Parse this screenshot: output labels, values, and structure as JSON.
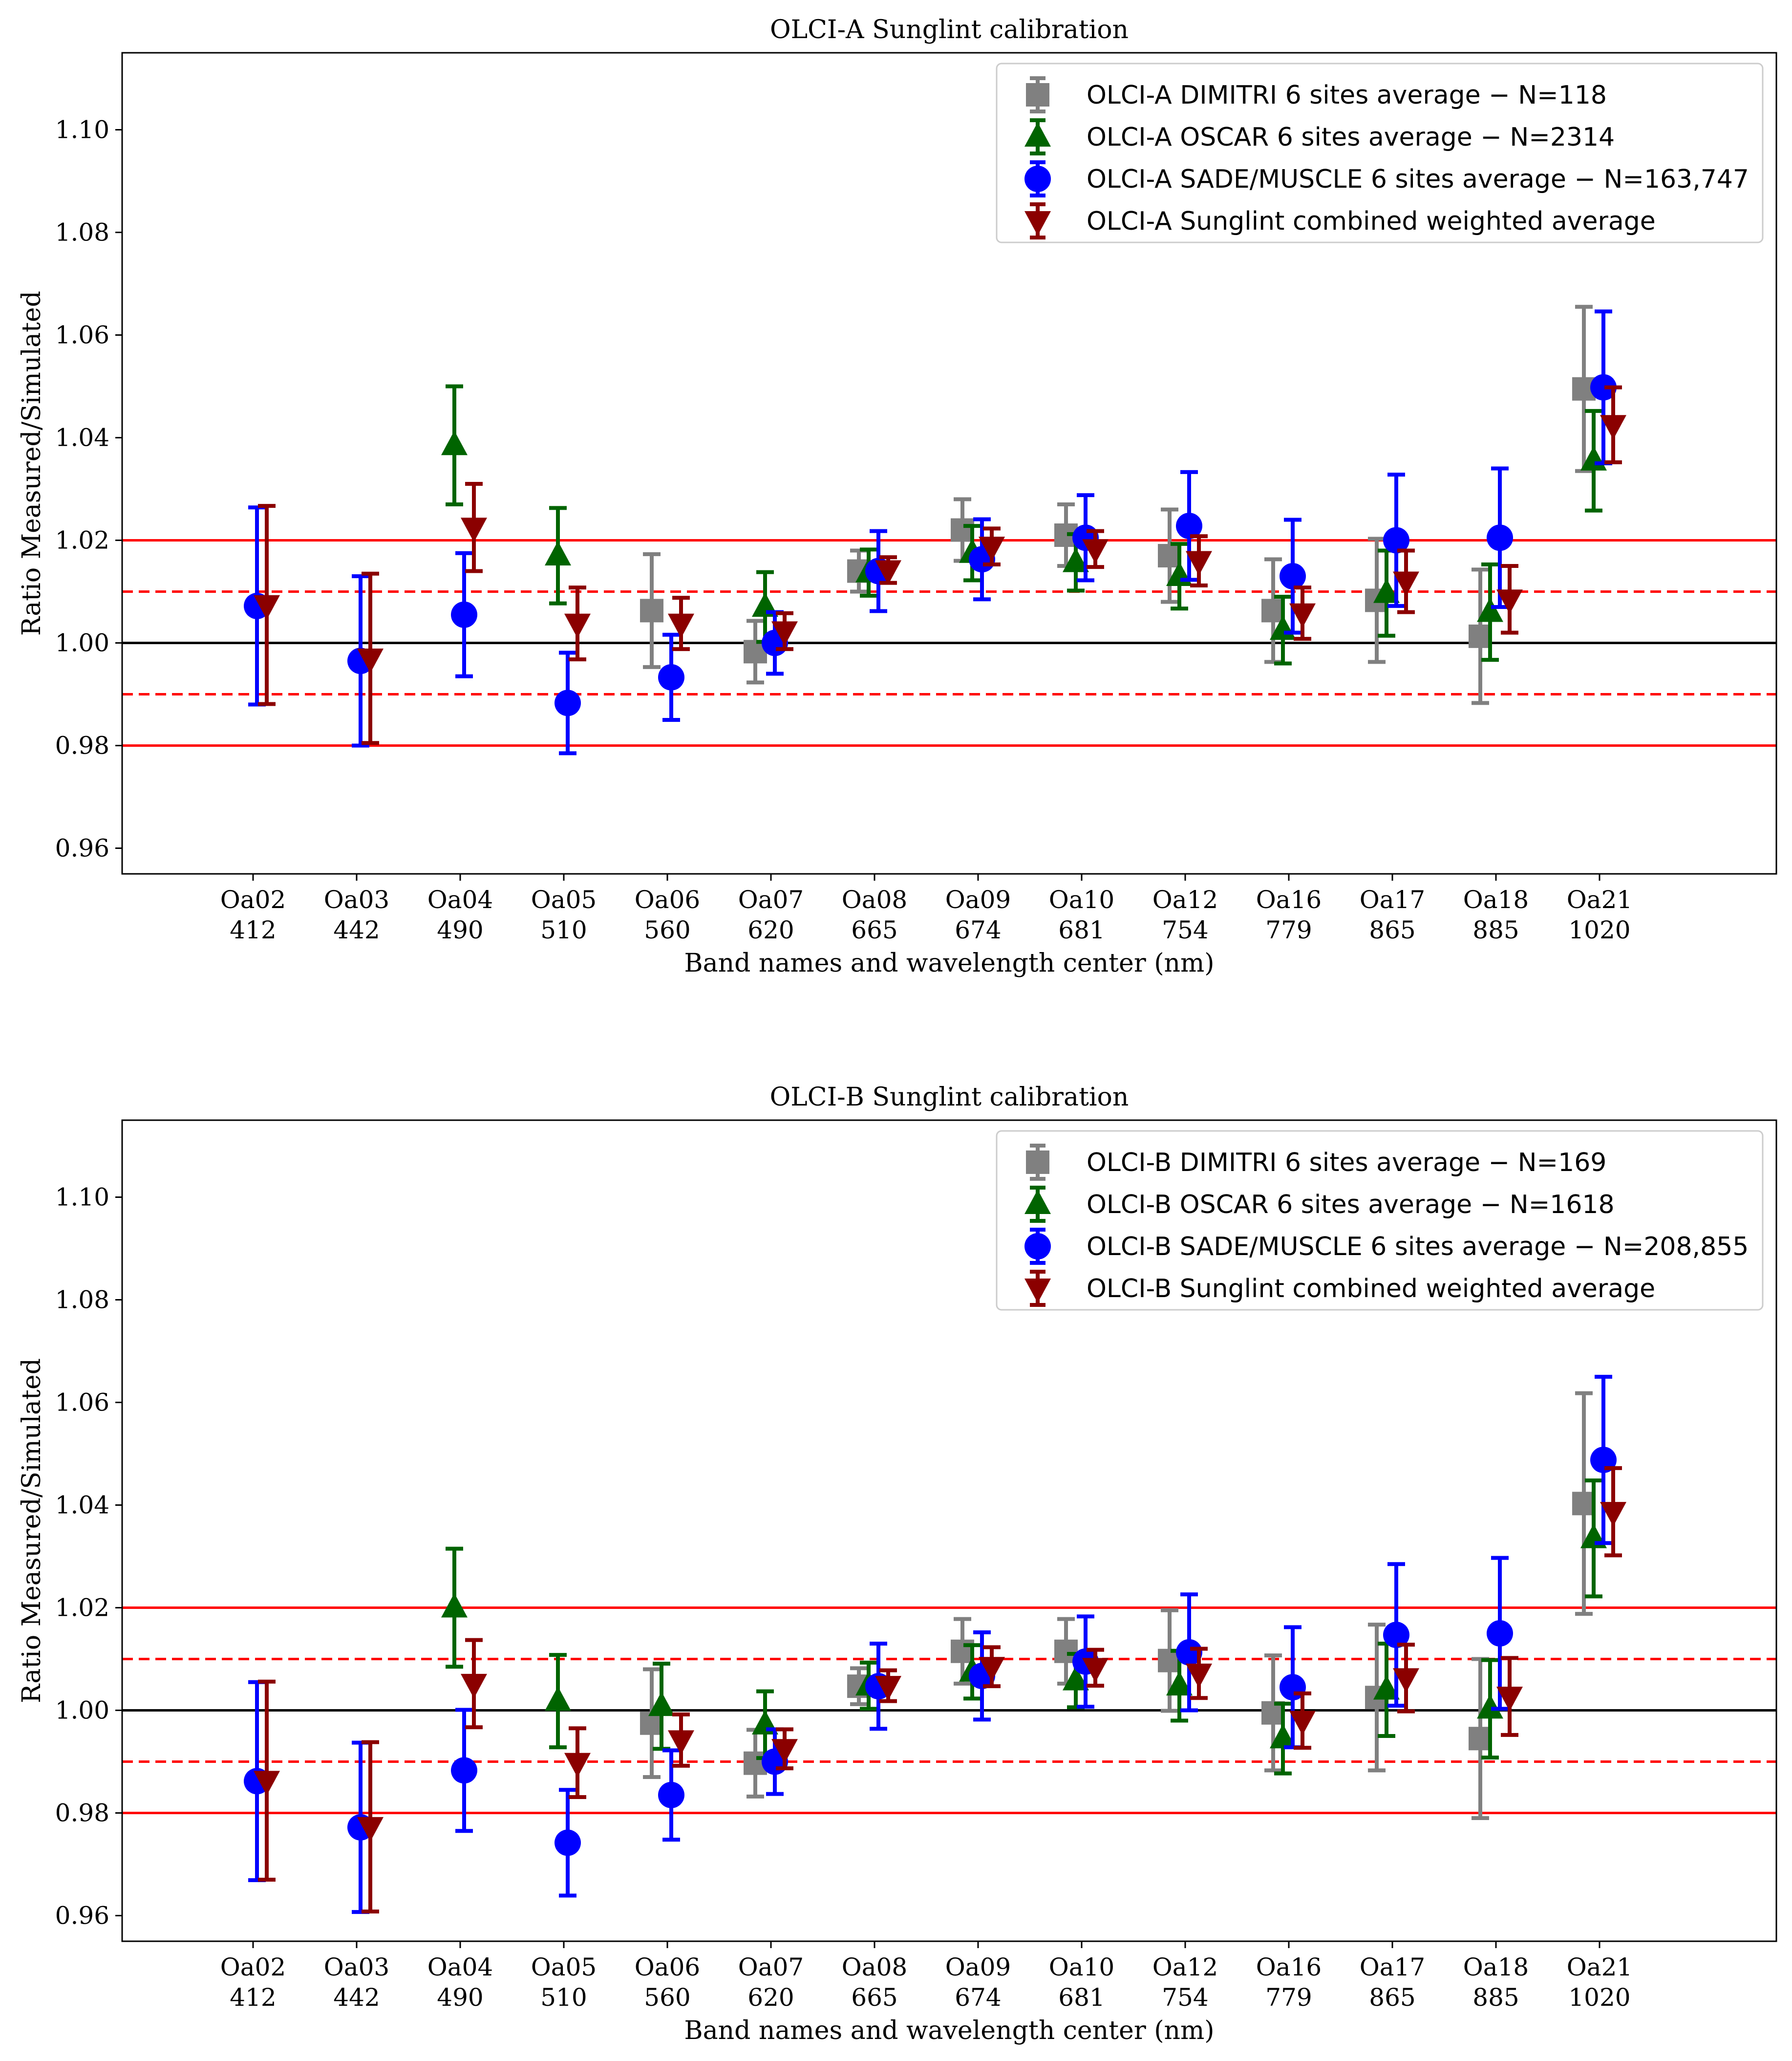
{
  "colors": {
    "dimitri": "#808080",
    "oscar": "#006400",
    "sade": "#0000ff",
    "combined": "#8b0000",
    "ref_line": "#ff0000",
    "unity_line": "#000000"
  },
  "chart_data": [
    {
      "type": "scatter",
      "id": "a",
      "title": "OLCI-A Sunglint calibration",
      "xlabel": "Band names and wavelength center (nm)",
      "ylabel": "Ratio Measured/Simulated",
      "ylim": [
        0.955,
        1.115
      ],
      "yticks": [
        "0.96",
        "0.98",
        "1.00",
        "1.02",
        "1.04",
        "1.06",
        "1.08",
        "1.10"
      ],
      "bands": [
        "Oa02",
        "Oa03",
        "Oa04",
        "Oa05",
        "Oa06",
        "Oa07",
        "Oa08",
        "Oa09",
        "Oa10",
        "Oa12",
        "Oa16",
        "Oa17",
        "Oa18",
        "Oa21"
      ],
      "wavelengths": [
        "412",
        "442",
        "490",
        "510",
        "560",
        "620",
        "665",
        "674",
        "681",
        "754",
        "779",
        "865",
        "885",
        "1020"
      ],
      "reference_lines": {
        "solid": [
          0.98,
          1.02
        ],
        "dashed": [
          0.99,
          1.01
        ],
        "unity": 1.0
      },
      "legend_position": "top-right",
      "series": [
        {
          "key": "dimitri",
          "marker": "square",
          "name": "OLCI-A DIMITRI 6 sites average − N=118",
          "values": [
            null,
            null,
            null,
            null,
            1.0063,
            0.9983,
            1.014,
            1.022,
            1.021,
            1.017,
            1.0063,
            1.0083,
            1.0013,
            1.0495
          ],
          "errors": [
            null,
            null,
            null,
            null,
            0.011,
            0.006,
            0.004,
            0.006,
            0.006,
            0.009,
            0.01,
            0.012,
            0.013,
            0.016
          ]
        },
        {
          "key": "oscar",
          "marker": "triangle-up",
          "name": "OLCI-A OSCAR 6 sites average − N=2314",
          "values": [
            null,
            null,
            1.0385,
            1.017,
            null,
            1.007,
            1.0137,
            1.0175,
            1.0157,
            1.013,
            1.0025,
            1.0097,
            1.006,
            1.0355
          ],
          "errors": [
            null,
            null,
            0.0115,
            0.0093,
            0.0075,
            0.0068,
            0.0045,
            0.0053,
            0.0055,
            0.0063,
            0.0065,
            0.0083,
            0.0093,
            0.0097
          ]
        },
        {
          "key": "sade",
          "marker": "circle",
          "name": "OLCI-A SADE/MUSCLE 6 sites average − N=163,747",
          "values": [
            1.0072,
            0.9965,
            1.0055,
            0.9883,
            0.9933,
            1.0,
            1.014,
            1.0163,
            1.0205,
            1.0228,
            1.013,
            1.02,
            1.0205,
            1.0498
          ],
          "errors": [
            0.0192,
            0.0165,
            0.012,
            0.0098,
            0.0083,
            0.006,
            0.0078,
            0.0078,
            0.0083,
            0.0105,
            0.011,
            0.0128,
            0.0135,
            0.0148
          ]
        },
        {
          "key": "combined",
          "marker": "triangle-down",
          "name": "OLCI-A Sunglint combined weighted average",
          "values": [
            1.0074,
            0.997,
            1.0225,
            1.0038,
            1.0038,
            1.0023,
            1.0142,
            1.0188,
            1.0183,
            1.016,
            1.0058,
            1.012,
            1.0085,
            1.0425
          ],
          "errors": [
            0.0193,
            0.0165,
            0.0085,
            0.007,
            0.005,
            0.0035,
            0.0025,
            0.0035,
            0.0035,
            0.0048,
            0.005,
            0.006,
            0.0065,
            0.0073
          ]
        }
      ]
    },
    {
      "type": "scatter",
      "id": "b",
      "title": "OLCI-B Sunglint calibration",
      "xlabel": "Band names and wavelength center (nm)",
      "ylabel": "Ratio Measured/Simulated",
      "ylim": [
        0.955,
        1.115
      ],
      "yticks": [
        "0.96",
        "0.98",
        "1.00",
        "1.02",
        "1.04",
        "1.06",
        "1.08",
        "1.10"
      ],
      "bands": [
        "Oa02",
        "Oa03",
        "Oa04",
        "Oa05",
        "Oa06",
        "Oa07",
        "Oa08",
        "Oa09",
        "Oa10",
        "Oa12",
        "Oa16",
        "Oa17",
        "Oa18",
        "Oa21"
      ],
      "wavelengths": [
        "412",
        "442",
        "490",
        "510",
        "560",
        "620",
        "665",
        "674",
        "681",
        "754",
        "779",
        "865",
        "885",
        "1020"
      ],
      "reference_lines": {
        "solid": [
          0.98,
          1.02
        ],
        "dashed": [
          0.99,
          1.01
        ],
        "unity": 1.0
      },
      "legend_position": "top-right",
      "series": [
        {
          "key": "dimitri",
          "marker": "square",
          "name": "OLCI-B DIMITRI 6 sites average − N=169",
          "values": [
            null,
            null,
            null,
            null,
            0.9975,
            0.9897,
            1.0047,
            1.0115,
            1.0115,
            1.0097,
            0.9995,
            1.0025,
            0.9945,
            1.0403
          ],
          "errors": [
            null,
            null,
            null,
            null,
            0.0105,
            0.0065,
            0.0035,
            0.0063,
            0.0063,
            0.0098,
            0.0112,
            0.0142,
            0.0155,
            0.0215
          ]
        },
        {
          "key": "oscar",
          "marker": "triangle-up",
          "name": "OLCI-B OSCAR 6 sites average − N=1618",
          "values": [
            null,
            null,
            1.02,
            1.0018,
            1.0008,
            0.9972,
            1.0048,
            1.0075,
            1.0058,
            1.0048,
            0.9945,
            1.004,
            1.0003,
            1.0335
          ],
          "errors": [
            null,
            null,
            0.0115,
            0.009,
            0.0083,
            0.0065,
            0.0045,
            0.0052,
            0.0052,
            0.0068,
            0.0068,
            0.009,
            0.0095,
            0.0113
          ]
        },
        {
          "key": "sade",
          "marker": "circle",
          "name": "OLCI-B SADE/MUSCLE 6 sites average − N=208,855",
          "values": [
            0.9862,
            0.9772,
            0.9883,
            0.9742,
            0.9835,
            0.99,
            1.0047,
            1.0067,
            1.0095,
            1.0113,
            1.0045,
            1.0147,
            1.015,
            1.0488
          ],
          "errors": [
            0.0193,
            0.0165,
            0.0118,
            0.0103,
            0.0087,
            0.0063,
            0.0083,
            0.0085,
            0.0088,
            0.0113,
            0.0117,
            0.0138,
            0.0147,
            0.0162
          ]
        },
        {
          "key": "combined",
          "marker": "triangle-down",
          "name": "OLCI-B Sunglint combined weighted average",
          "values": [
            0.9863,
            0.9773,
            1.0052,
            0.9898,
            0.9942,
            0.9925,
            1.0048,
            1.0085,
            1.0083,
            1.0072,
            0.998,
            1.0063,
            1.0027,
            1.0387
          ],
          "errors": [
            0.0193,
            0.0165,
            0.0085,
            0.0067,
            0.005,
            0.0038,
            0.003,
            0.0038,
            0.0035,
            0.0048,
            0.0053,
            0.0065,
            0.0075,
            0.0085
          ]
        }
      ]
    }
  ]
}
